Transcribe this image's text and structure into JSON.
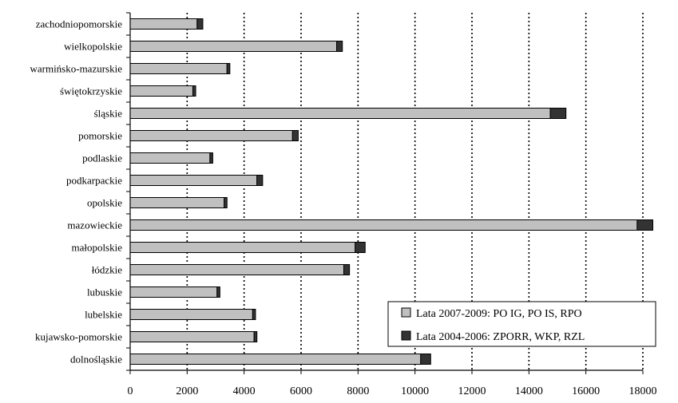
{
  "chart_data": {
    "type": "bar",
    "orientation": "horizontal",
    "stacked": true,
    "categories": [
      "zachodniopomorskie",
      "wielkopolskie",
      "warmińsko-mazurskie",
      "świętokrzyskie",
      "śląskie",
      "pomorskie",
      "podlaskie",
      "podkarpackie",
      "opolskie",
      "mazowieckie",
      "małopolskie",
      "łódzkie",
      "lubuskie",
      "lubelskie",
      "kujawsko-pomorskie",
      "dolnośląskie"
    ],
    "series": [
      {
        "name": "Lata 2007-2009: PO IG, PO IS, RPO",
        "color": "#c0c0c0",
        "values": [
          2350,
          7250,
          3400,
          2200,
          14750,
          5700,
          2800,
          4450,
          3300,
          17800,
          7900,
          7500,
          3050,
          4300,
          4350,
          10200
        ]
      },
      {
        "name": "Lata 2004-2006: ZPORR, WKP, RZL",
        "color": "#333333",
        "values": [
          200,
          200,
          100,
          100,
          550,
          200,
          100,
          200,
          100,
          550,
          350,
          200,
          100,
          100,
          100,
          350
        ]
      }
    ],
    "xlim": [
      0,
      18000
    ],
    "xticks": [
      0,
      2000,
      4000,
      6000,
      8000,
      10000,
      12000,
      14000,
      16000,
      18000
    ],
    "grid": "vertical-dotted",
    "legend_position": "bottom-right",
    "title": "",
    "xlabel": "",
    "ylabel": ""
  }
}
